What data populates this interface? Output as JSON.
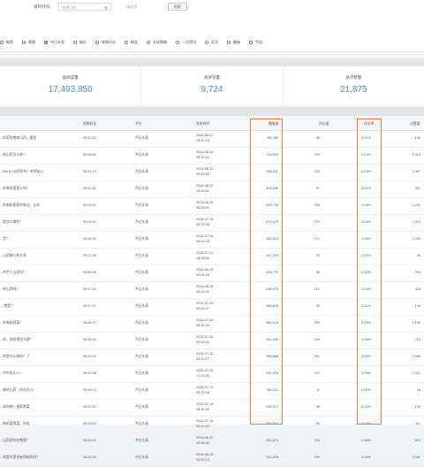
{
  "filters": {
    "time_label": "发布时间:",
    "date_placeholder": "选择日期",
    "channel_placeholder": "请选择",
    "search_label": "搜索",
    "tabs": [
      {
        "label": "推荐",
        "selected": false
      },
      {
        "label": "视频",
        "selected": false
      },
      {
        "label": "今日头条",
        "selected": true
      },
      {
        "label": "娱乐",
        "selected": false
      },
      {
        "label": "体育评论",
        "selected": false
      },
      {
        "label": "搞笑",
        "selected": false
      },
      {
        "label": "文化情感",
        "selected": false
      },
      {
        "label": "一点资讯",
        "selected": false
      },
      {
        "label": "天天",
        "selected": false
      },
      {
        "label": "趣味",
        "selected": false
      },
      {
        "label": "手机",
        "selected": false
      }
    ]
  },
  "stats": [
    {
      "label": "总阅读量",
      "value": "17,493,850"
    },
    {
      "label": "总评论量",
      "value": "9,724"
    },
    {
      "label": "总点赞量",
      "value": "21,875"
    }
  ],
  "table": {
    "columns": [
      "",
      "视频时长",
      "平台",
      "发布时间",
      "播放量",
      "评论量",
      "评论率",
      "点赞量"
    ],
    "rows": [
      {
        "title": "...你家的美味山药，要您",
        "duration": "00:01:32",
        "platform": "今日头条",
        "date": "2016-08-17",
        "time": "09:20:16",
        "plays": "765,484",
        "comments": "45",
        "rate": "0.01%",
        "likes": "106"
      },
      {
        "title": "...的山药怎么样？",
        "duration": "00:00:54",
        "platform": "今日头条",
        "date": "2016-08-16",
        "time": "09:20:11",
        "plays": "718,590",
        "comments": "239",
        "rate": "0.03%",
        "likes": "1,063"
      },
      {
        "title": "...fish.tv?这样好吗？吃得安心",
        "duration": "00:01:47",
        "platform": "今日头条",
        "date": "2016-08-13",
        "time": "09:26:46",
        "plays": "650,311",
        "comments": "225",
        "rate": "0.03%",
        "likes": "1,397"
      },
      {
        "title": "...的有机葡萄入吗？",
        "duration": "00:01:41",
        "platform": "今日头条",
        "date": "2016-08-12",
        "time": "14:40:02",
        "plays": "634,650",
        "comments": "87",
        "rate": "0.01%",
        "likes": "301"
      },
      {
        "title": "...的有机葡萄的做法，让你",
        "duration": "00:00:52",
        "platform": "今日头条",
        "date": "2016-08-24",
        "time": "09:28:00",
        "plays": "620,730",
        "comments": "258",
        "rate": "0.04%",
        "likes": "1,234"
      },
      {
        "title": "...是怎么做的？",
        "duration": "00:03:51",
        "platform": "今日头条",
        "date": "2016-07-16",
        "time": "09:17:35",
        "plays": "472,223",
        "comments": "170",
        "rate": "0.04%",
        "likes": "1,012"
      },
      {
        "title": "...里？",
        "duration": "00:04:39",
        "platform": "今日头条",
        "date": "2016-07-19",
        "time": "09:41:18",
        "plays": "461,315",
        "comments": "171",
        "rate": "0.04%",
        "likes": "1,034"
      },
      {
        "title": "...山药都与你分享",
        "duration": "00:07:38",
        "platform": "今日头条",
        "date": "2016-07-01",
        "time": "15:39:55",
        "plays": "447,315",
        "comments": "53",
        "rate": "0.01%",
        "likes": "95"
      },
      {
        "title": "...的手工山药吗？",
        "duration": "00:05:08",
        "platform": "今日头条",
        "date": "2016-06-25",
        "time": "09:22:48",
        "plays": "436,779",
        "comments": "85",
        "rate": "0.02%",
        "likes": "218"
      },
      {
        "title": "...的山药吗？",
        "duration": "00:07:40",
        "platform": "今日头条",
        "date": "2016-06-29",
        "time": "09:22:03",
        "plays": "436,675",
        "comments": "121",
        "rate": "0.03%",
        "likes": "418"
      },
      {
        "title": "...\"就是\"！",
        "duration": "00:07:37",
        "platform": "今日头条",
        "date": "2016-07-03",
        "time": "09:32:07",
        "plays": "365,625",
        "comments": "30",
        "rate": "0.01%",
        "likes": "146"
      },
      {
        "title": "...的有机蔬菜！",
        "duration": "00:06:27",
        "platform": "今日头条",
        "date": "2016-07-04",
        "time": "09:30:24",
        "plays": "365,424",
        "comments": "159",
        "rate": "0.04%",
        "likes": "1,105"
      },
      {
        "title": "...的，你觉得怎么做？",
        "duration": "00:04:49",
        "platform": "今日头条",
        "date": "2016-07-06",
        "time": "09:49:44",
        "plays": "301,346",
        "comments": "149",
        "rate": "0.05%",
        "likes": "713"
      },
      {
        "title": "...你是什么样的？了",
        "duration": "00:02:00",
        "platform": "今日头条",
        "date": "2016-07-10",
        "time": "09:20:17",
        "plays": "296,666",
        "comments": "191",
        "rate": "0.06%",
        "likes": "1,005"
      },
      {
        "title": "...中午吃什么?",
        "duration": "00:02:08",
        "platform": "今日头条",
        "date": "2016-07-05",
        "time": "17:01:58",
        "plays": "291,028",
        "comments": "272",
        "rate": "0.09%",
        "likes": "1,311"
      },
      {
        "title": "...做的山药，你也可以",
        "duration": "00:04:14",
        "platform": "今日头条",
        "date": "2016-07-14",
        "time": "09:20:18",
        "plays": "262,211",
        "comments": "11",
        "rate": "0.00%",
        "likes": "28"
      },
      {
        "title": "...如何做一道家常菜",
        "duration": "00:02:20",
        "platform": "今日头条",
        "date": "2016-07-13",
        "time": "08:32:36",
        "plays": "255,971",
        "comments": "56",
        "rate": "0.02%",
        "likes": "102"
      },
      {
        "title": "...做的家常菜，你也",
        "duration": "00:03:51",
        "platform": "今日头条",
        "date": "2016-07-16",
        "time": "09:21:42",
        "plays": "253,814",
        "comments": "93",
        "rate": "0.04%",
        "likes": "411"
      },
      {
        "title": "...山药好吃在哪里？",
        "duration": "00:02:41",
        "platform": "今日头条",
        "date": "2016-06-22",
        "time": "09:38:36",
        "plays": "251,870",
        "comments": "154",
        "rate": "0.06%",
        "likes": "519"
      },
      {
        "title": "...你是不是也有同样的吗？",
        "duration": "00:02:34",
        "platform": "今日头条",
        "date": "2016-06-23",
        "time": "08:32:14",
        "plays": "251,625",
        "comments": "199",
        "rate": "0.08%",
        "likes": "1,062"
      }
    ]
  }
}
